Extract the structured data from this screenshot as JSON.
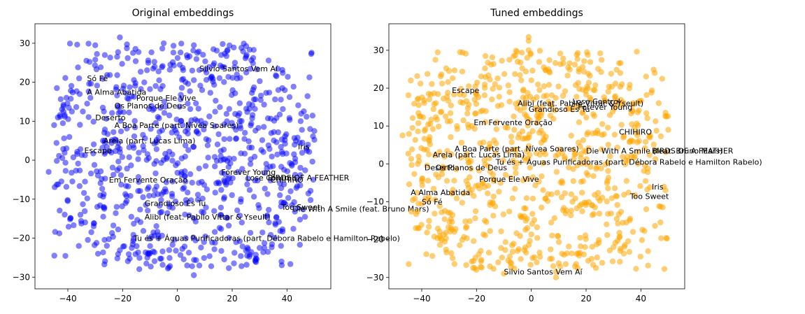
{
  "chart_data": [
    {
      "type": "scatter",
      "title": "Original embeddings",
      "xlim": [
        -52,
        56
      ],
      "ylim": [
        -33,
        35
      ],
      "xticks": [
        -40,
        -20,
        0,
        20,
        40
      ],
      "yticks": [
        -30,
        -20,
        -10,
        0,
        10,
        20,
        30
      ],
      "xtick_labels": [
        "−40",
        "−20",
        "0",
        "20",
        "40"
      ],
      "ytick_labels": [
        "−30",
        "−20",
        "−10",
        "0",
        "10",
        "20",
        "30"
      ],
      "color": "#0000ff",
      "opacity": 0.5,
      "point_count": 900,
      "seed": 11,
      "extra_points": [
        [
          -21,
          31.5
        ],
        [
          -5,
          30
        ],
        [
          6,
          29.5
        ],
        [
          -30,
          29.5
        ],
        [
          16,
          27
        ],
        [
          21,
          25
        ],
        [
          -44,
          18.5
        ],
        [
          -47,
          -3
        ],
        [
          50,
          7.5
        ],
        [
          47,
          3
        ],
        [
          -36,
          -22
        ],
        [
          -29,
          -24
        ],
        [
          -11,
          -25
        ],
        [
          6,
          -29.5
        ],
        [
          8,
          -27
        ],
        [
          38,
          -26
        ],
        [
          30,
          -22.5
        ],
        [
          44,
          -5
        ],
        [
          -45,
          9
        ],
        [
          45,
          10
        ]
      ],
      "annotations": [
        {
          "text": "Silvio Santos Vem Aí",
          "x": 8,
          "y": 23.5
        },
        {
          "text": "Só Fé",
          "x": -33,
          "y": 21
        },
        {
          "text": "A Alma Abatida",
          "x": -33,
          "y": 17.5
        },
        {
          "text": "Porque Ele Vive",
          "x": -15,
          "y": 16
        },
        {
          "text": "Os Planos de Deus",
          "x": -23,
          "y": 14
        },
        {
          "text": "Deserto",
          "x": -30,
          "y": 11
        },
        {
          "text": "A Boa Parte (part. Nívea Soares)",
          "x": -23,
          "y": 9
        },
        {
          "text": "Areia (part. Lucas Lima)",
          "x": -27,
          "y": 5
        },
        {
          "text": "Escape",
          "x": -34,
          "y": 2.5
        },
        {
          "text": "Iris",
          "x": 44,
          "y": 3.5
        },
        {
          "text": "Forever Young",
          "x": 16,
          "y": -3
        },
        {
          "text": "BIRDS OF A FEATHER",
          "x": 33,
          "y": -4.5
        },
        {
          "text": "Lose Control",
          "x": 25,
          "y": -4.5
        },
        {
          "text": "CHIHIRO",
          "x": 34,
          "y": -5
        },
        {
          "text": "Em Fervente Oração",
          "x": -25,
          "y": -5
        },
        {
          "text": "Grandioso És Tu",
          "x": -12,
          "y": -11
        },
        {
          "text": "Too Sweet",
          "x": 38,
          "y": -12
        },
        {
          "text": "Die With A Smile (feat. Bruno Mars)",
          "x": 42,
          "y": -12.5
        },
        {
          "text": "Alibi (feat. Pabllo Vittar & Yseult)",
          "x": -12,
          "y": -14.5
        },
        {
          "text": "Tu és + Águas Purificadoras (part. Débora Rabelo e Hamilton Rabelo)",
          "x": -16,
          "y": -20
        }
      ]
    },
    {
      "type": "scatter",
      "title": "Tuned embeddings",
      "xlim": [
        -52,
        56
      ],
      "ylim": [
        -33,
        37
      ],
      "xticks": [
        -40,
        -20,
        0,
        20,
        40
      ],
      "yticks": [
        -30,
        -20,
        -10,
        0,
        10,
        20,
        30
      ],
      "xtick_labels": [
        "−40",
        "−20",
        "0",
        "20",
        "40"
      ],
      "ytick_labels": [
        "−30",
        "−20",
        "−10",
        "0",
        "10",
        "20",
        "30"
      ],
      "color": "#ffa500",
      "opacity": 0.55,
      "point_count": 900,
      "seed": 23,
      "extra_points": [
        [
          -1,
          33.5
        ],
        [
          -1,
          32.5
        ],
        [
          -1,
          30
        ],
        [
          -8,
          27.5
        ],
        [
          -5,
          27
        ],
        [
          -35,
          27.5
        ],
        [
          -26,
          29.5
        ],
        [
          -47,
          7.5
        ],
        [
          50,
          9
        ],
        [
          49,
          -7
        ],
        [
          -41,
          -17
        ],
        [
          -20,
          -28
        ],
        [
          -10,
          -29
        ],
        [
          8,
          -27
        ],
        [
          9,
          -28.5
        ],
        [
          9,
          -30
        ],
        [
          2,
          -26
        ],
        [
          12,
          -24
        ],
        [
          30,
          -22
        ],
        [
          -5,
          -23
        ]
      ],
      "annotations": [
        {
          "text": "Escape",
          "x": -29,
          "y": 19.5
        },
        {
          "text": "Alibi (feat. Pabllo Vittar & Yseult)",
          "x": -5,
          "y": 16
        },
        {
          "text": "Lose Control",
          "x": 15,
          "y": 16.5
        },
        {
          "text": "Grandioso És Tu",
          "x": -1,
          "y": 14.5
        },
        {
          "text": "Forever Young",
          "x": 17,
          "y": 15
        },
        {
          "text": "Em Fervente Oração",
          "x": -21,
          "y": 11
        },
        {
          "text": "CHIHIRO",
          "x": 32,
          "y": 8.5
        },
        {
          "text": "A Boa Parte (part. Nívea Soares)",
          "x": -28,
          "y": 4
        },
        {
          "text": "Die With A Smile (feat. Bruno Mars)",
          "x": 20,
          "y": 3.5
        },
        {
          "text": "BIRDS OF A FEATHER",
          "x": 44,
          "y": 3.5
        },
        {
          "text": "Areia (part. Lucas Lima)",
          "x": -36,
          "y": 2.5
        },
        {
          "text": "Tu és + Águas Purificadoras (part. Débora Rabelo e Hamilton Rabelo)",
          "x": -13,
          "y": 0.5
        },
        {
          "text": "Deserto",
          "x": -39,
          "y": -1
        },
        {
          "text": "Os Planos de Deus",
          "x": -35,
          "y": -1
        },
        {
          "text": "Porque Ele Vive",
          "x": -19,
          "y": -4
        },
        {
          "text": "Iris",
          "x": 44,
          "y": -6
        },
        {
          "text": "A Alma Abatida",
          "x": -44,
          "y": -7.5
        },
        {
          "text": "Too Sweet",
          "x": 36,
          "y": -8.5
        },
        {
          "text": "Só Fé",
          "x": -40,
          "y": -10
        },
        {
          "text": "Silvio Santos Vem Aí",
          "x": -10,
          "y": -28.5
        }
      ]
    }
  ]
}
